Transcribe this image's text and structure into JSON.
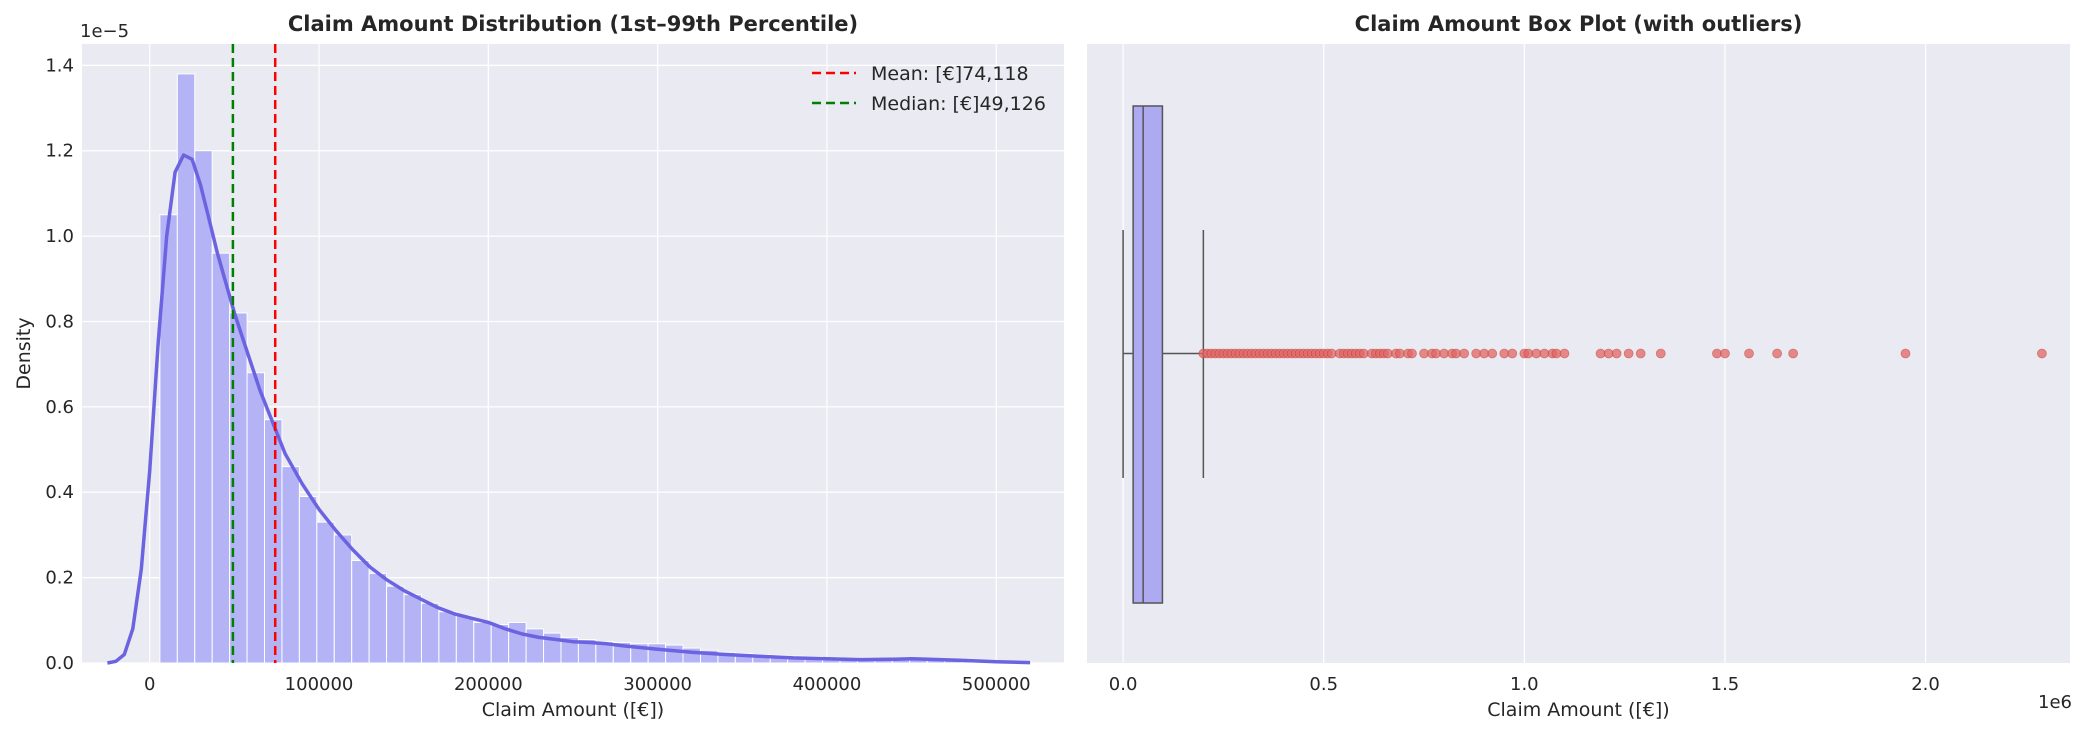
{
  "colors": {
    "panel_bg": "#eaeaf2",
    "grid": "#ffffff",
    "hist_fill": "#b3b3f5",
    "kde_line": "#6c63e0",
    "mean_line": "#ff0000",
    "median_line": "#008000",
    "box_fill": "#adaaf2",
    "box_edge": "#555555",
    "outlier": "#e06666",
    "text": "#262626"
  },
  "chart_data": [
    {
      "type": "histogram",
      "title": "Claim Amount Distribution (1st–99th Percentile)",
      "xlabel": "Claim Amount ([€])",
      "ylabel": "Density",
      "y_scale_label": "1e−5",
      "xlim": [
        -40000,
        540000
      ],
      "ylim": [
        0,
        1.45
      ],
      "xticks": [
        0,
        100000,
        200000,
        300000,
        400000,
        500000
      ],
      "xtick_labels": [
        "0",
        "100000",
        "200000",
        "300000",
        "400000",
        "500000"
      ],
      "yticks": [
        0,
        0.2,
        0.4,
        0.6,
        0.8,
        1.0,
        1.2,
        1.4
      ],
      "ytick_labels": [
        "0.0",
        "0.2",
        "0.4",
        "0.6",
        "0.8",
        "1.0",
        "1.2",
        "1.4"
      ],
      "bins": {
        "start": 6000,
        "width": 10300,
        "density": [
          1.05,
          1.38,
          1.2,
          0.96,
          0.82,
          0.68,
          0.57,
          0.46,
          0.39,
          0.33,
          0.3,
          0.24,
          0.21,
          0.18,
          0.16,
          0.14,
          0.12,
          0.11,
          0.095,
          0.09,
          0.095,
          0.08,
          0.07,
          0.06,
          0.055,
          0.05,
          0.048,
          0.045,
          0.045,
          0.042,
          0.035,
          0.03,
          0.025,
          0.022,
          0.02,
          0.018,
          0.016,
          0.015,
          0.013,
          0.012,
          0.011,
          0.01,
          0.009,
          0.008,
          0.007,
          0.006,
          0.005,
          0.004,
          0.004,
          0.003
        ]
      },
      "kde": {
        "x": [
          -25000,
          -20000,
          -15000,
          -10000,
          -5000,
          0,
          5000,
          10000,
          15000,
          20000,
          25000,
          30000,
          35000,
          40000,
          45000,
          50000,
          55000,
          60000,
          65000,
          70000,
          75000,
          80000,
          90000,
          100000,
          110000,
          120000,
          130000,
          140000,
          150000,
          160000,
          170000,
          180000,
          190000,
          200000,
          210000,
          220000,
          230000,
          240000,
          250000,
          260000,
          270000,
          280000,
          300000,
          320000,
          340000,
          360000,
          380000,
          400000,
          420000,
          440000,
          450000,
          460000,
          480000,
          500000,
          520000
        ],
        "y": [
          0.0,
          0.004,
          0.02,
          0.08,
          0.22,
          0.45,
          0.75,
          1.0,
          1.15,
          1.19,
          1.18,
          1.12,
          1.04,
          0.96,
          0.89,
          0.82,
          0.76,
          0.7,
          0.64,
          0.59,
          0.54,
          0.49,
          0.42,
          0.36,
          0.31,
          0.265,
          0.225,
          0.195,
          0.17,
          0.15,
          0.13,
          0.115,
          0.105,
          0.095,
          0.08,
          0.068,
          0.06,
          0.055,
          0.05,
          0.048,
          0.045,
          0.04,
          0.032,
          0.025,
          0.02,
          0.016,
          0.012,
          0.01,
          0.008,
          0.009,
          0.01,
          0.009,
          0.006,
          0.003,
          0.001
        ]
      },
      "mean": {
        "value": 74118,
        "label": "Mean: [€]74,118"
      },
      "median": {
        "value": 49126,
        "label": "Median: [€]49,126"
      },
      "legend_position": "top-right",
      "grid": true
    },
    {
      "type": "boxplot",
      "title": "Claim Amount Box Plot (with outliers)",
      "xlabel": "Claim Amount ([€])",
      "x_scale_label": "1e6",
      "xlim": [
        -0.09,
        2.36
      ],
      "xticks": [
        0.0,
        0.5,
        1.0,
        1.5,
        2.0
      ],
      "xtick_labels": [
        "0.0",
        "0.5",
        "1.0",
        "1.5",
        "2.0"
      ],
      "box": {
        "whisker_low": 0.0,
        "q1": 0.025,
        "median": 0.05,
        "q3": 0.098,
        "whisker_high": 0.2
      },
      "outliers": [
        0.2,
        0.21,
        0.22,
        0.23,
        0.24,
        0.25,
        0.26,
        0.27,
        0.28,
        0.29,
        0.3,
        0.31,
        0.32,
        0.33,
        0.34,
        0.35,
        0.36,
        0.37,
        0.38,
        0.39,
        0.4,
        0.41,
        0.42,
        0.43,
        0.44,
        0.45,
        0.46,
        0.47,
        0.48,
        0.49,
        0.5,
        0.51,
        0.52,
        0.54,
        0.55,
        0.56,
        0.57,
        0.58,
        0.59,
        0.6,
        0.62,
        0.63,
        0.64,
        0.65,
        0.66,
        0.68,
        0.69,
        0.71,
        0.72,
        0.75,
        0.77,
        0.78,
        0.8,
        0.82,
        0.83,
        0.85,
        0.88,
        0.9,
        0.92,
        0.95,
        0.97,
        1.0,
        1.01,
        1.03,
        1.05,
        1.07,
        1.08,
        1.1,
        1.19,
        1.21,
        1.23,
        1.26,
        1.29,
        1.34,
        1.48,
        1.5,
        1.56,
        1.63,
        1.67,
        1.95,
        2.29
      ],
      "grid": true
    }
  ]
}
